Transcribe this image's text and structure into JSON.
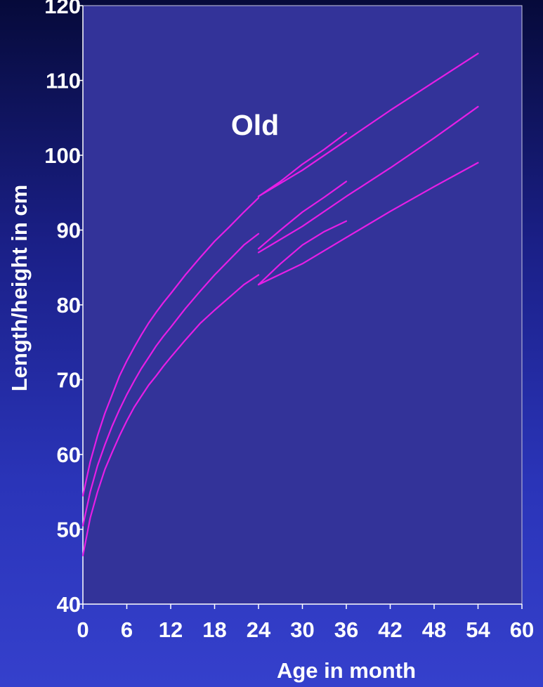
{
  "chart_data": {
    "type": "line",
    "xlabel": "Age in month",
    "ylabel": "Length/height in cm",
    "xlim": [
      0,
      60
    ],
    "ylim": [
      40,
      120
    ],
    "xticks": [
      0,
      6,
      12,
      18,
      24,
      30,
      36,
      42,
      48,
      54,
      60
    ],
    "yticks": [
      40,
      50,
      60,
      70,
      80,
      90,
      100,
      110,
      120
    ],
    "grid": false,
    "annotation": "Old",
    "line_color": "#e61ee6",
    "plot_background": "#333399",
    "series": [
      {
        "x": [
          0,
          1,
          2,
          3,
          4,
          5,
          6,
          7,
          8,
          9,
          10,
          11,
          12,
          14,
          16,
          18,
          20,
          22,
          24
        ],
        "y": [
          54.5,
          59,
          62.5,
          65.5,
          68,
          70.5,
          72.5,
          74.3,
          76,
          77.6,
          79,
          80.3,
          81.5,
          84,
          86.3,
          88.5,
          90.4,
          92.4,
          94.3
        ]
      },
      {
        "x": [
          24,
          27,
          30,
          33,
          36
        ],
        "y": [
          94.5,
          96.5,
          98.8,
          100.8,
          103
        ]
      },
      {
        "x": [
          24,
          30,
          36,
          42,
          48,
          54
        ],
        "y": [
          94.5,
          98,
          102,
          106,
          109.8,
          113.6
        ]
      },
      {
        "x": [
          0,
          1,
          2,
          3,
          4,
          5,
          6,
          7,
          8,
          9,
          10,
          11,
          12,
          14,
          16,
          18,
          20,
          22,
          24
        ],
        "y": [
          50.5,
          55,
          58.5,
          61.3,
          63.8,
          66,
          68,
          69.8,
          71.5,
          73,
          74.5,
          75.8,
          77,
          79.5,
          81.8,
          84,
          86,
          88,
          89.5
        ]
      },
      {
        "x": [
          24,
          27,
          30,
          33,
          36
        ],
        "y": [
          87.5,
          90,
          92.4,
          94.4,
          96.5
        ]
      },
      {
        "x": [
          24,
          30,
          36,
          42,
          48,
          54
        ],
        "y": [
          87,
          90.5,
          94.5,
          98.3,
          102.3,
          106.5
        ]
      },
      {
        "x": [
          0,
          1,
          2,
          3,
          4,
          5,
          6,
          7,
          8,
          9,
          10,
          11,
          12,
          14,
          16,
          18,
          20,
          22,
          24
        ],
        "y": [
          46.5,
          51.5,
          55,
          58,
          60.3,
          62.5,
          64.5,
          66.3,
          67.8,
          69.3,
          70.5,
          71.8,
          73,
          75.3,
          77.5,
          79.3,
          81,
          82.7,
          84
        ]
      },
      {
        "x": [
          24,
          27,
          30,
          33,
          36
        ],
        "y": [
          82.7,
          85.5,
          88,
          89.8,
          91.2
        ]
      },
      {
        "x": [
          24,
          30,
          36,
          42,
          48,
          54
        ],
        "y": [
          82.7,
          85.5,
          89,
          92.5,
          95.8,
          99
        ]
      }
    ]
  }
}
